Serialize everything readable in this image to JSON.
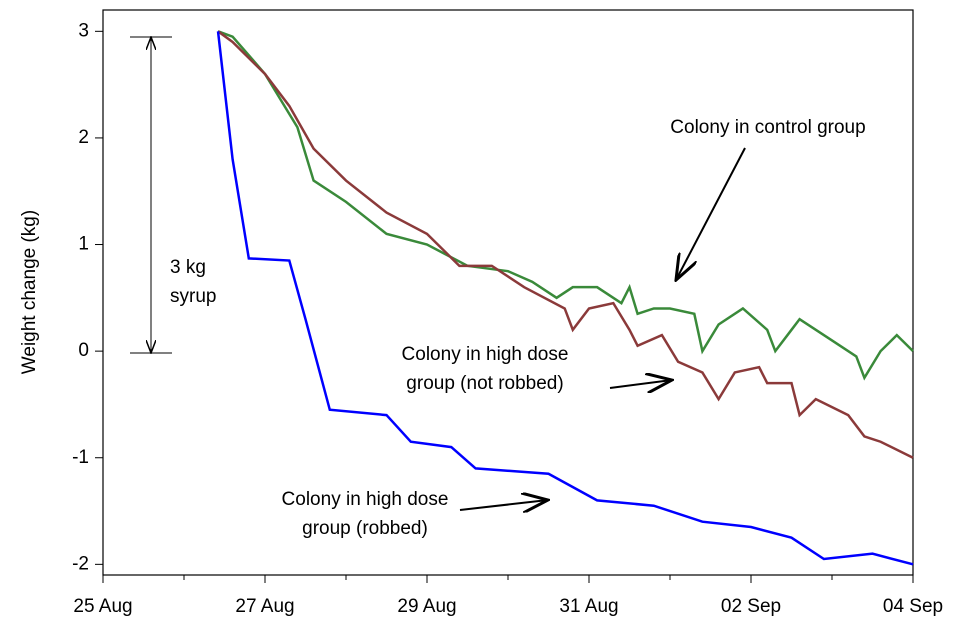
{
  "chart_data": {
    "type": "line",
    "y_label": "Weight change (kg)",
    "xlim": [
      0,
      10
    ],
    "ylim": [
      -2.1,
      3.2
    ],
    "xticks": [
      {
        "value": 0,
        "label": "25 Aug"
      },
      {
        "value": 2,
        "label": "27 Aug"
      },
      {
        "value": 4,
        "label": "29 Aug"
      },
      {
        "value": 6,
        "label": "31 Aug"
      },
      {
        "value": 8,
        "label": "02 Sep"
      },
      {
        "value": 10,
        "label": "04 Sep"
      }
    ],
    "x_minor_ticks": [
      1,
      3,
      5,
      7,
      9
    ],
    "yticks": [
      -2,
      -1,
      0,
      1,
      2,
      3
    ],
    "series": [
      {
        "color": "#3a8a3a",
        "x": [
          1.42,
          1.6,
          2.0,
          2.4,
          2.6,
          3.0,
          3.5,
          4.0,
          4.5,
          5.0,
          5.3,
          5.6,
          5.8,
          6.1,
          6.4,
          6.5,
          6.6,
          6.8,
          7.0,
          7.3,
          7.4,
          7.6,
          7.9,
          8.2,
          8.3,
          8.5,
          8.6,
          9.0,
          9.3,
          9.4,
          9.6,
          9.8,
          10.0
        ],
        "values": [
          3.0,
          2.95,
          2.6,
          2.1,
          1.6,
          1.4,
          1.1,
          1.0,
          0.8,
          0.75,
          0.65,
          0.5,
          0.6,
          0.6,
          0.45,
          0.6,
          0.35,
          0.4,
          0.4,
          0.35,
          0.0,
          0.25,
          0.4,
          0.2,
          0.0,
          0.2,
          0.3,
          0.1,
          -0.05,
          -0.25,
          0.0,
          0.15,
          0.0
        ]
      },
      {
        "color": "#8b3a3a",
        "x": [
          1.42,
          1.6,
          2.0,
          2.3,
          2.6,
          3.0,
          3.5,
          4.0,
          4.4,
          4.8,
          5.2,
          5.7,
          5.8,
          6.0,
          6.3,
          6.5,
          6.6,
          6.9,
          7.1,
          7.4,
          7.6,
          7.8,
          8.1,
          8.2,
          8.5,
          8.6,
          8.8,
          9.2,
          9.4,
          9.6,
          10.0
        ],
        "values": [
          3.0,
          2.9,
          2.6,
          2.3,
          1.9,
          1.6,
          1.3,
          1.1,
          0.8,
          0.8,
          0.6,
          0.4,
          0.2,
          0.4,
          0.45,
          0.2,
          0.05,
          0.15,
          -0.1,
          -0.2,
          -0.45,
          -0.2,
          -0.15,
          -0.3,
          -0.3,
          -0.6,
          -0.45,
          -0.6,
          -0.8,
          -0.85,
          -1.0
        ]
      },
      {
        "color": "#0000ff",
        "x": [
          1.42,
          1.6,
          1.8,
          2.3,
          2.5,
          2.8,
          3.5,
          3.8,
          4.3,
          4.6,
          5.5,
          6.1,
          6.8,
          7.4,
          8.0,
          8.5,
          8.9,
          9.5,
          10.0
        ],
        "values": [
          3.0,
          1.8,
          0.87,
          0.85,
          0.3,
          -0.55,
          -0.6,
          -0.85,
          -0.9,
          -1.1,
          -1.15,
          -1.4,
          -1.45,
          -1.6,
          -1.65,
          -1.75,
          -1.95,
          -1.9,
          -2.0
        ]
      }
    ],
    "annotations": [
      {
        "lines": [
          "3 kg",
          "syrup"
        ]
      },
      {
        "lines": [
          "Colony in control group"
        ]
      },
      {
        "lines": [
          "Colony in high dose",
          "group (not robbed)"
        ]
      },
      {
        "lines": [
          "Colony in high dose",
          "group (robbed)"
        ]
      }
    ]
  }
}
